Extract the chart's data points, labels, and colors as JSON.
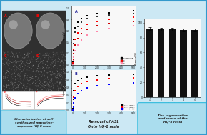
{
  "background_color": "#cce8f4",
  "outer_border_color": "#3399cc",
  "panel_bg": "#ffffff",
  "left_panel": {
    "label": "Characterization of self-\nsynthesized macro/me-\nsoporous HQ-8 resin",
    "label_bg": "#aaddee",
    "label_border": "#33bbdd"
  },
  "middle_panel": {
    "label": "Removal of ASL\nOnto HQ-8 resin",
    "top_plot": {
      "label": "A",
      "series": [
        {
          "color": "#000000",
          "marker": "s",
          "x": [
            0,
            5,
            10,
            20,
            40,
            70,
            120,
            200,
            300,
            500
          ],
          "y": [
            0.05,
            0.25,
            0.45,
            0.65,
            0.75,
            0.82,
            0.87,
            0.9,
            0.92,
            0.95
          ]
        },
        {
          "color": "#333333",
          "marker": "s",
          "x": [
            0,
            5,
            10,
            20,
            40,
            70,
            120,
            200,
            300,
            500
          ],
          "y": [
            0.04,
            0.2,
            0.38,
            0.58,
            0.68,
            0.76,
            0.82,
            0.86,
            0.88,
            0.9
          ]
        },
        {
          "color": "#ff0000",
          "marker": "s",
          "x": [
            0,
            5,
            10,
            20,
            40,
            70,
            120,
            200,
            300,
            500
          ],
          "y": [
            0.03,
            0.15,
            0.28,
            0.45,
            0.56,
            0.64,
            0.72,
            0.77,
            0.8,
            0.84
          ]
        },
        {
          "color": "#cc0000",
          "marker": "s",
          "x": [
            0,
            5,
            10,
            20,
            40,
            70,
            120,
            200,
            300,
            500
          ],
          "y": [
            0.02,
            0.1,
            0.2,
            0.35,
            0.46,
            0.55,
            0.63,
            0.69,
            0.73,
            0.77
          ]
        },
        {
          "color": "#ff88aa",
          "marker": "s",
          "x": [
            0,
            5,
            10,
            20,
            40,
            70,
            120,
            200,
            300,
            500
          ],
          "y": [
            0.01,
            0.07,
            0.14,
            0.25,
            0.35,
            0.44,
            0.53,
            0.59,
            0.64,
            0.69
          ]
        }
      ],
      "legend": [
        "T=298(K/mg)",
        "T=",
        "T=",
        "T=",
        "T="
      ],
      "xlabel": "minutes",
      "ylabel": "qt(mg/g)"
    },
    "bottom_plot": {
      "label": "B",
      "series": [
        {
          "color": "#000000",
          "marker": "s",
          "x": [
            0,
            5,
            10,
            20,
            40,
            70,
            120,
            200,
            300,
            500
          ],
          "y": [
            0.05,
            0.3,
            0.52,
            0.7,
            0.78,
            0.83,
            0.87,
            0.9,
            0.92,
            0.94
          ]
        },
        {
          "color": "#ff0000",
          "marker": "s",
          "x": [
            0,
            5,
            10,
            20,
            40,
            70,
            120,
            200,
            300,
            500
          ],
          "y": [
            0.03,
            0.18,
            0.35,
            0.52,
            0.63,
            0.7,
            0.76,
            0.8,
            0.83,
            0.86
          ]
        },
        {
          "color": "#0000ff",
          "marker": "s",
          "x": [
            0,
            5,
            10,
            20,
            40,
            70,
            120,
            200,
            300,
            500
          ],
          "y": [
            0.02,
            0.1,
            0.2,
            0.34,
            0.44,
            0.52,
            0.6,
            0.65,
            0.69,
            0.73
          ]
        }
      ],
      "legend": [
        "C0=1 (mg/L)",
        "C0=2 (mg/L)",
        "C0=3 (mg/L)"
      ],
      "xlabel": "minutes",
      "ylabel": "qt(mg/g)"
    }
  },
  "right_panel": {
    "label": "The regeneration\nand reuse of the\nHQ-8 resin",
    "label_bg": "#aaddee",
    "label_border": "#33bbdd",
    "bar_values": [
      92,
      91,
      91,
      90,
      90
    ],
    "bar_color": "#111111",
    "xlabel": "number of cycle",
    "ylabel": "Removal(%)",
    "ylim": [
      0,
      100
    ],
    "yticks": [
      0,
      20,
      40,
      60,
      80,
      100
    ],
    "categories": [
      "1",
      "2",
      "3",
      "4",
      "5"
    ]
  }
}
